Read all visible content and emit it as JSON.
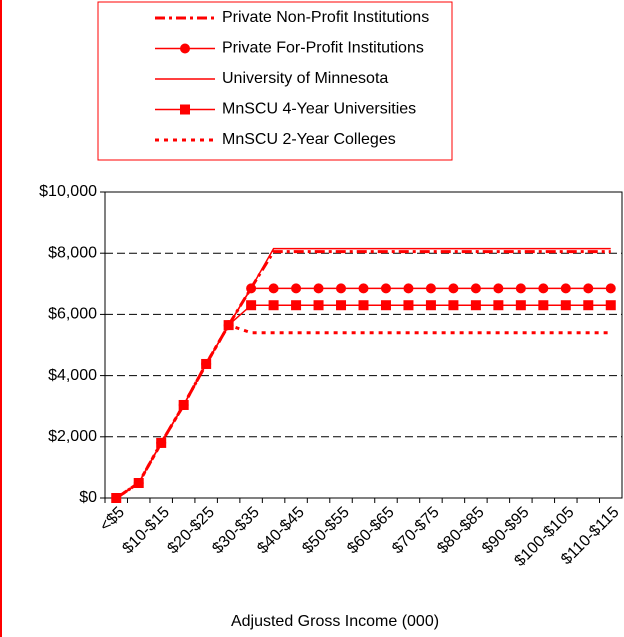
{
  "chart_data": {
    "type": "line",
    "x_label": "Adjusted Gross Income (000)",
    "categories": [
      "<$5",
      null,
      "$10-$15",
      null,
      "$20-$25",
      null,
      "$30-$35",
      null,
      "$40-$45",
      null,
      "$50-$55",
      null,
      "$60-$65",
      null,
      "$70-$75",
      null,
      "$80-$85",
      null,
      "$90-$95",
      null,
      "$100-$105",
      null,
      "$110-$115"
    ],
    "ylim": [
      0,
      10000
    ],
    "yticks": [
      {
        "value": 0,
        "label": "$0"
      },
      {
        "value": 2000,
        "label": "$2,000"
      },
      {
        "value": 4000,
        "label": "$4,000"
      },
      {
        "value": 6000,
        "label": "$6,000"
      },
      {
        "value": 8000,
        "label": "$8,000"
      },
      {
        "value": 10000,
        "label": "$10,000"
      }
    ],
    "grid": true,
    "series": [
      {
        "name": "Private Non-Profit Institutions",
        "color": "#ff0000",
        "dash": "dashdot",
        "marker": null,
        "values": [
          0,
          490,
          1800,
          3040,
          4380,
          5650,
          6860,
          8050,
          8050,
          8050,
          8050,
          8050,
          8050,
          8050,
          8050,
          8050,
          8050,
          8050,
          8050,
          8050,
          8050,
          8050,
          8050
        ]
      },
      {
        "name": "Private For-Profit Institutions",
        "color": "#ff0000",
        "dash": "solid",
        "marker": "circle",
        "values": [
          0,
          490,
          1800,
          3040,
          4380,
          5650,
          6850,
          6850,
          6850,
          6850,
          6850,
          6850,
          6850,
          6850,
          6850,
          6850,
          6850,
          6850,
          6850,
          6850,
          6850,
          6850,
          6850
        ]
      },
      {
        "name": "University of Minnesota",
        "color": "#ff0000",
        "dash": "solid",
        "marker": null,
        "values": [
          0,
          490,
          1800,
          3040,
          4380,
          5650,
          6860,
          8150,
          8150,
          8150,
          8150,
          8150,
          8150,
          8150,
          8150,
          8150,
          8150,
          8150,
          8150,
          8150,
          8150,
          8150,
          8150
        ]
      },
      {
        "name": "MnSCU 4-Year Universities",
        "color": "#ff0000",
        "dash": "solid",
        "marker": "square",
        "values": [
          0,
          490,
          1800,
          3040,
          4380,
          5650,
          6300,
          6300,
          6300,
          6300,
          6300,
          6300,
          6300,
          6300,
          6300,
          6300,
          6300,
          6300,
          6300,
          6300,
          6300,
          6300,
          6300
        ]
      },
      {
        "name": "MnSCU 2-Year Colleges",
        "color": "#ff0000",
        "dash": "dotted",
        "marker": null,
        "values": [
          0,
          490,
          1800,
          3040,
          4380,
          5650,
          5400,
          5400,
          5400,
          5400,
          5400,
          5400,
          5400,
          5400,
          5400,
          5400,
          5400,
          5400,
          5400,
          5400,
          5400,
          5400,
          5400
        ]
      }
    ]
  }
}
